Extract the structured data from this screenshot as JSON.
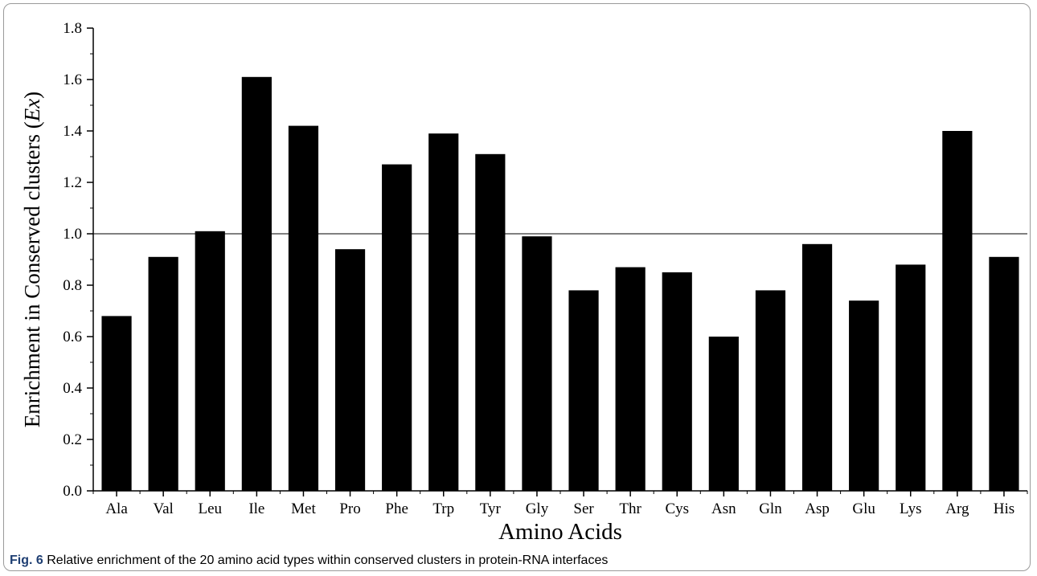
{
  "chart_data": {
    "type": "bar",
    "categories": [
      "Ala",
      "Val",
      "Leu",
      "Ile",
      "Met",
      "Pro",
      "Phe",
      "Trp",
      "Tyr",
      "Gly",
      "Ser",
      "Thr",
      "Cys",
      "Asn",
      "Gln",
      "Asp",
      "Glu",
      "Lys",
      "Arg",
      "His"
    ],
    "values": [
      0.68,
      0.91,
      1.01,
      1.61,
      1.42,
      0.94,
      1.27,
      1.39,
      1.31,
      0.99,
      0.78,
      0.87,
      0.85,
      0.6,
      0.78,
      0.96,
      0.74,
      0.88,
      1.4,
      0.91
    ],
    "xlabel": "Amino Acids",
    "ylabel_main": "Enrichment in Conserved clusters (",
    "ylabel_italic": "Ex",
    "ylabel_close": ")",
    "ylim": [
      0,
      1.8
    ],
    "yticks": [
      "0.0",
      "0.2",
      "0.4",
      "0.6",
      "0.8",
      "1.0",
      "1.2",
      "1.4",
      "1.6",
      "1.8"
    ],
    "reference_line": 1.0,
    "bar_color": "#000000",
    "grid": false,
    "legend": "none"
  },
  "caption": {
    "label": "Fig. 6",
    "text": "Relative enrichment of the 20 amino acid types within conserved clusters in protein-RNA interfaces"
  }
}
